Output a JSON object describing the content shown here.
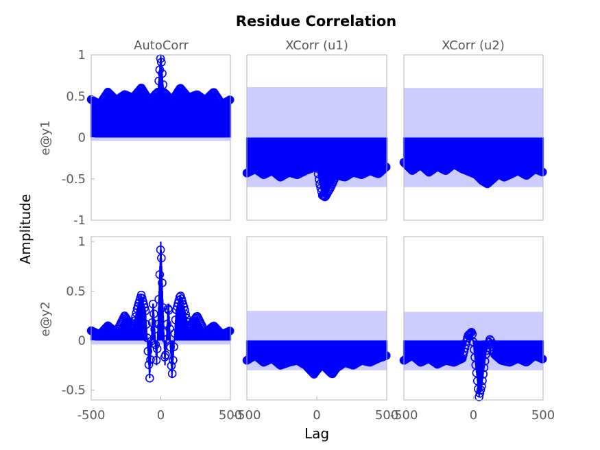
{
  "chart_data": {
    "type": "scatter",
    "title": "Residue Correlation",
    "xlabel": "Lag",
    "ylabel": "Amplitude",
    "columns": [
      "AutoCorr",
      "XCorr (u1)",
      "XCorr (u2)"
    ],
    "rows": [
      "e@y1",
      "e@y2"
    ],
    "xlim": [
      -500,
      500
    ],
    "xticks": [
      "-500",
      "0",
      "500"
    ],
    "rows_axes": [
      {
        "ylim": [
          -1,
          1
        ],
        "yticks": [
          -1,
          -0.5,
          0,
          0.5,
          1
        ],
        "ytick_labels": [
          "-1",
          "-0.5",
          "0",
          "0.5",
          "1"
        ]
      },
      {
        "ylim": [
          -0.6,
          1.05
        ],
        "yticks": [
          -0.5,
          0,
          0.5,
          1
        ],
        "ytick_labels": [
          "-0.5",
          "0",
          "0.5",
          "1"
        ]
      }
    ],
    "colors": {
      "markers": "#0000ff",
      "confidence_band": "#ccccff"
    },
    "subplots": [
      {
        "row": 0,
        "col": 0,
        "band": [
          -0.04,
          0.04
        ],
        "envelope_x": [
          -500,
          -440,
          -380,
          -320,
          -260,
          -200,
          -140,
          -80,
          -40,
          -20,
          0,
          20,
          40,
          80,
          140,
          200,
          260,
          320,
          380,
          440,
          500
        ],
        "envelope_y": [
          0.46,
          0.4,
          0.55,
          0.45,
          0.52,
          0.48,
          0.6,
          0.44,
          0.52,
          0.55,
          1.0,
          0.55,
          0.52,
          0.44,
          0.6,
          0.48,
          0.52,
          0.45,
          0.55,
          0.4,
          0.46
        ]
      },
      {
        "row": 0,
        "col": 1,
        "band": [
          -0.6,
          0.61
        ],
        "envelope_x": [
          -500,
          -440,
          -380,
          -320,
          -260,
          -200,
          -140,
          -80,
          -20,
          0,
          20,
          40,
          60,
          100,
          140,
          200,
          260,
          320,
          380,
          440,
          500
        ],
        "envelope_y": [
          -0.43,
          -0.38,
          -0.45,
          -0.4,
          -0.48,
          -0.42,
          -0.45,
          -0.4,
          -0.36,
          -0.33,
          -0.55,
          -0.7,
          -0.72,
          -0.6,
          -0.45,
          -0.48,
          -0.42,
          -0.45,
          -0.4,
          -0.44,
          -0.35
        ]
      },
      {
        "row": 0,
        "col": 2,
        "band": [
          -0.6,
          0.6
        ],
        "envelope_x": [
          -500,
          -440,
          -380,
          -320,
          -260,
          -200,
          -140,
          -80,
          -20,
          20,
          60,
          100,
          140,
          180,
          220,
          260,
          320,
          380,
          440,
          500
        ],
        "envelope_y": [
          -0.3,
          -0.4,
          -0.33,
          -0.42,
          -0.35,
          -0.4,
          -0.32,
          -0.38,
          -0.42,
          -0.45,
          -0.52,
          -0.56,
          -0.5,
          -0.44,
          -0.48,
          -0.45,
          -0.4,
          -0.46,
          -0.38,
          -0.42
        ]
      },
      {
        "row": 1,
        "col": 0,
        "band": [
          -0.04,
          0.04
        ],
        "envelope_x": [
          -500,
          -440,
          -380,
          -320,
          -260,
          -200,
          -170,
          -140,
          -110,
          -80,
          -55,
          -30,
          0,
          30,
          55,
          80,
          110,
          140,
          170,
          200,
          260,
          320,
          380,
          440,
          500
        ],
        "envelope_y": [
          0.1,
          0.06,
          0.15,
          0.08,
          0.25,
          0.12,
          0.32,
          0.46,
          0.3,
          -0.38,
          0.4,
          -0.25,
          1.0,
          -0.25,
          0.4,
          -0.38,
          0.3,
          0.46,
          0.32,
          0.12,
          0.25,
          0.08,
          0.15,
          0.06,
          0.1
        ]
      },
      {
        "row": 1,
        "col": 1,
        "band": [
          -0.3,
          0.3
        ],
        "envelope_x": [
          -500,
          -440,
          -380,
          -320,
          -260,
          -200,
          -140,
          -80,
          -20,
          0,
          40,
          80,
          110,
          140,
          200,
          260,
          320,
          380,
          440,
          500
        ],
        "envelope_y": [
          -0.2,
          -0.15,
          -0.22,
          -0.18,
          -0.25,
          -0.22,
          -0.2,
          -0.25,
          -0.34,
          -0.3,
          -0.24,
          -0.3,
          -0.34,
          -0.28,
          -0.22,
          -0.25,
          -0.2,
          -0.22,
          -0.18,
          -0.15
        ]
      },
      {
        "row": 1,
        "col": 2,
        "band": [
          -0.3,
          0.29
        ],
        "envelope_x": [
          -500,
          -440,
          -380,
          -320,
          -260,
          -200,
          -140,
          -80,
          -40,
          -10,
          20,
          40,
          60,
          90,
          120,
          150,
          200,
          260,
          320,
          380,
          440,
          500
        ],
        "envelope_y": [
          -0.2,
          -0.15,
          -0.22,
          -0.18,
          -0.24,
          -0.2,
          -0.22,
          -0.18,
          0.05,
          0.09,
          -0.3,
          -0.57,
          -0.45,
          -0.12,
          0.02,
          -0.14,
          -0.2,
          -0.22,
          -0.18,
          -0.22,
          -0.15,
          -0.19
        ]
      }
    ]
  }
}
